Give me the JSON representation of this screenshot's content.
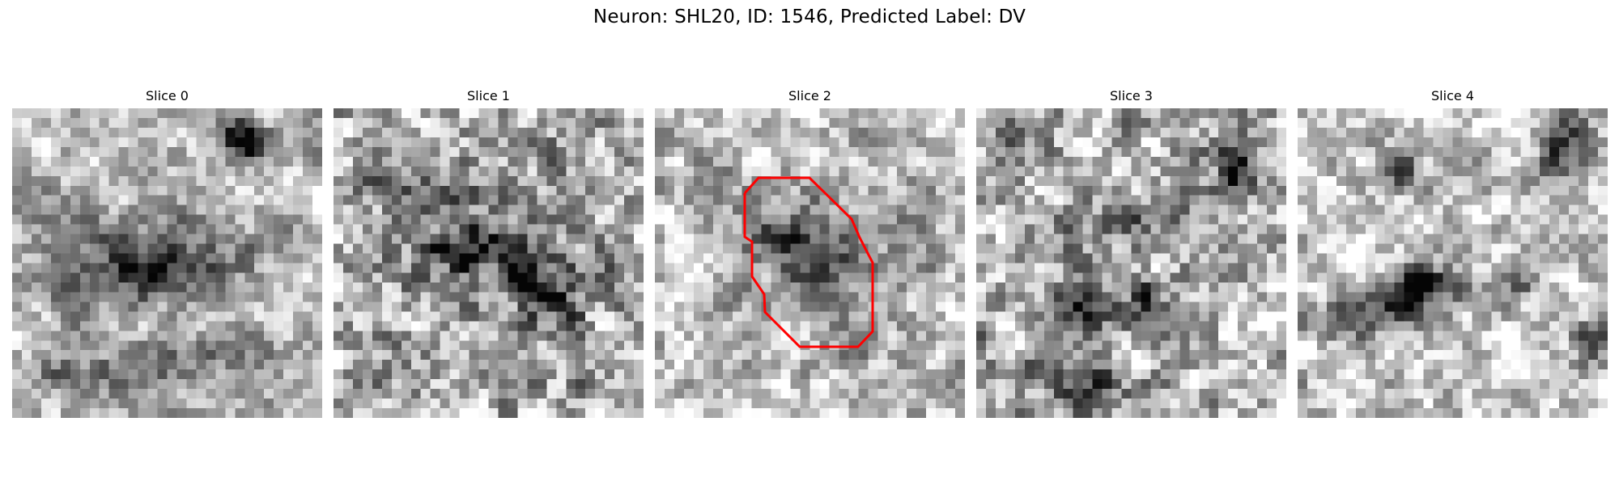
{
  "figure": {
    "title": "Neuron: SHL20, ID: 1546, Predicted Label: DV"
  },
  "panels": [
    {
      "title": "Slice 0"
    },
    {
      "title": "Slice 1"
    },
    {
      "title": "Slice 2"
    },
    {
      "title": "Slice 3"
    },
    {
      "title": "Slice 4"
    }
  ],
  "outline": {
    "panel_index": 2,
    "color": "#ff0000"
  },
  "colors": {
    "background": "#ffffff",
    "colormap": "gray"
  }
}
